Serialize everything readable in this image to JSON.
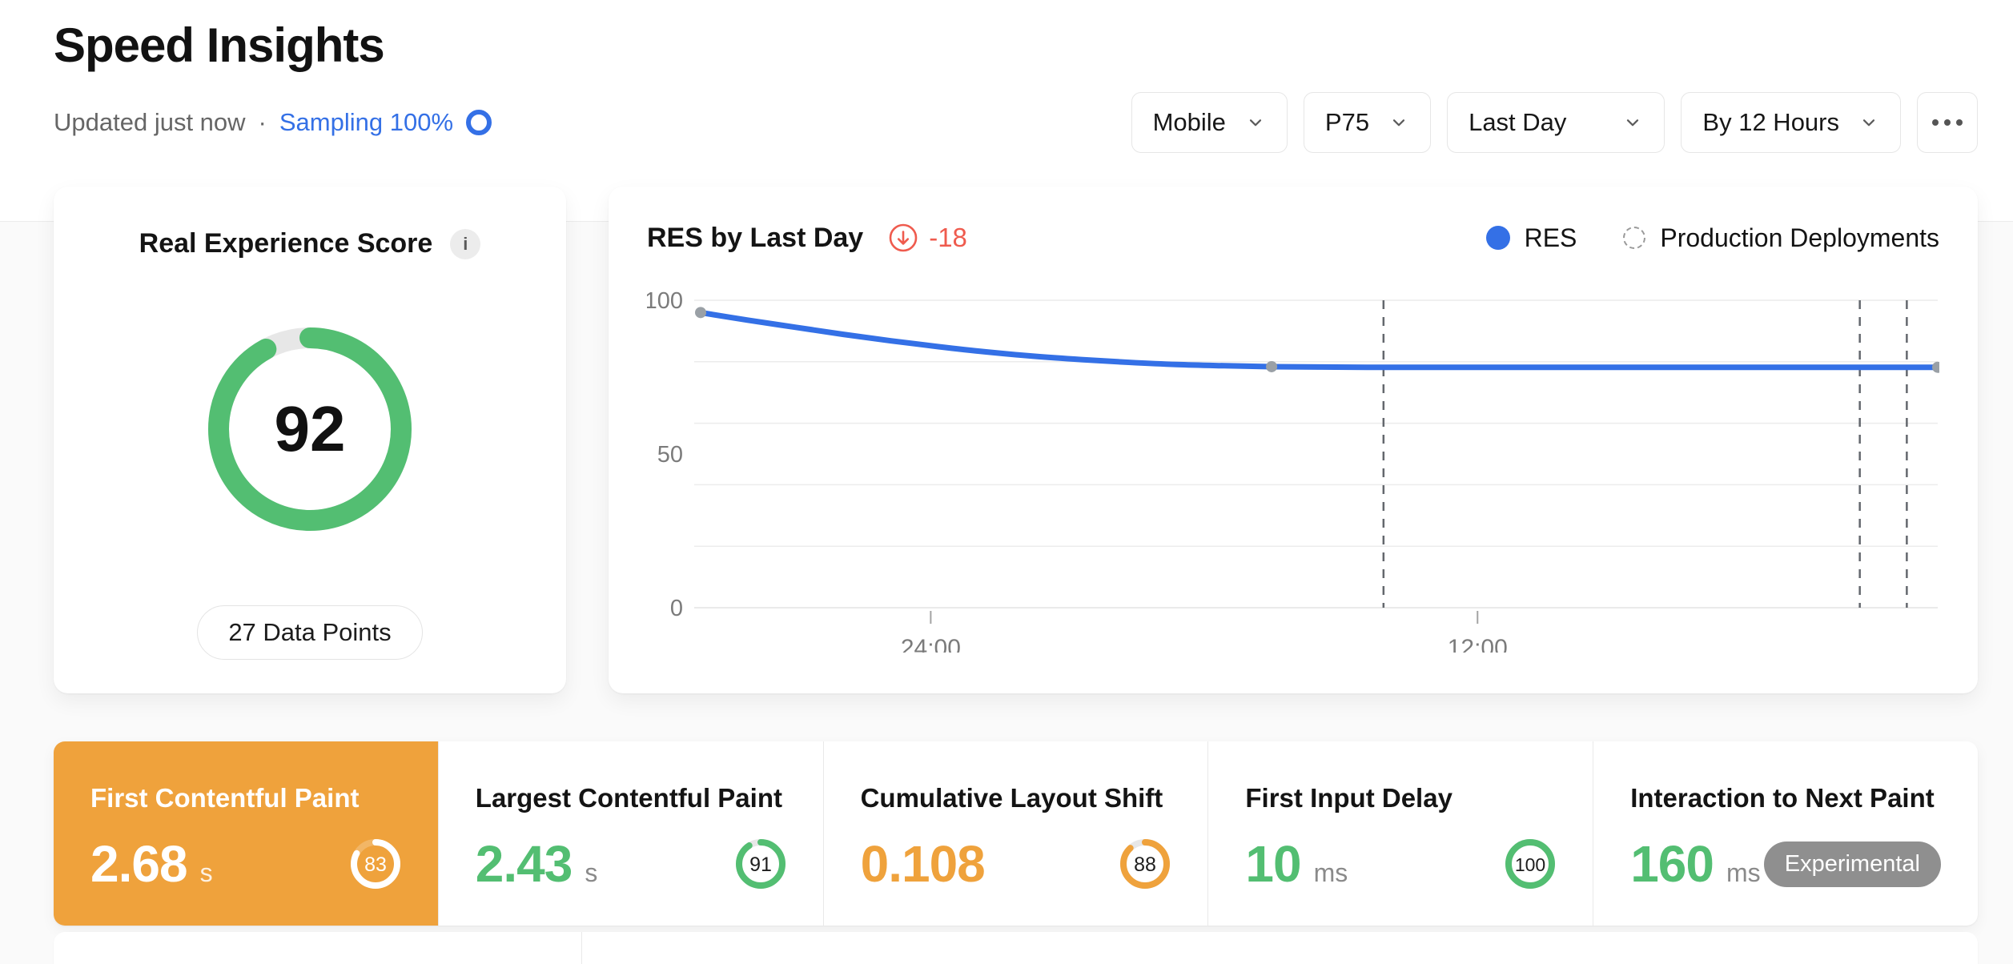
{
  "colors": {
    "blue": "#3470e6",
    "green": "#53be72",
    "amber": "#efa23c",
    "red": "#ef5b4e",
    "grid": "#ececec",
    "axis_text": "#7b7b7b",
    "marker_gray": "#9aa0a6",
    "deployment_line": "#63676d"
  },
  "header": {
    "title": "Speed Insights",
    "updated": "Updated just now",
    "separator": "·",
    "sampling": "Sampling 100%"
  },
  "filters": {
    "items": [
      {
        "label": "Mobile"
      },
      {
        "label": "P75"
      },
      {
        "label": "Last Day"
      },
      {
        "label": "By 12 Hours"
      }
    ]
  },
  "res_card": {
    "title": "Real Experience Score",
    "info_icon": "i",
    "score": 92,
    "data_points_label": "27 Data Points"
  },
  "chart_card": {
    "title": "RES by Last Day",
    "delta": "-18",
    "legend_res": "RES",
    "legend_deployments": "Production Deployments"
  },
  "chart_data": {
    "type": "line",
    "title": "RES by Last Day",
    "ylim": [
      0,
      100
    ],
    "y_tick_labels": [
      100,
      50,
      0
    ],
    "gridline_values": [
      100,
      80,
      60,
      40,
      20,
      0
    ],
    "grid": "horizontal",
    "legend_position": "top-right",
    "x_tick_labels": [
      {
        "label": "24:00",
        "pos": 0.186
      },
      {
        "label": "12:00",
        "pos": 0.628
      }
    ],
    "series": [
      {
        "name": "RES",
        "color_key": "blue",
        "values": [
          96,
          93.5,
          91.2,
          88.9,
          86.8,
          84.9,
          83.2,
          81.8,
          80.7,
          79.8,
          79.1,
          78.7,
          78.4,
          78.3,
          78.2,
          78.2,
          78.2,
          78.2,
          78.2,
          78.2,
          78.2,
          78.2,
          78.2,
          78.2,
          78.2,
          78.2,
          78.2
        ]
      }
    ],
    "marker_indices": [
      0,
      12,
      26
    ],
    "production_deployments_pos": [
      0.552,
      0.937,
      0.975
    ]
  },
  "metrics": [
    {
      "title": "First Contentful Paint",
      "value": "2.68",
      "unit": "s",
      "score": 83,
      "tone": "amber",
      "selected": true
    },
    {
      "title": "Largest Contentful Paint",
      "value": "2.43",
      "unit": "s",
      "score": 91,
      "tone": "green",
      "selected": false
    },
    {
      "title": "Cumulative Layout Shift",
      "value": "0.108",
      "unit": "",
      "score": 88,
      "tone": "amber",
      "selected": false
    },
    {
      "title": "First Input Delay",
      "value": "10",
      "unit": "ms",
      "score": 100,
      "tone": "green",
      "selected": false
    },
    {
      "title": "Interaction to Next Paint",
      "value": "160",
      "unit": "ms",
      "badge": "Experimental",
      "tone": "green",
      "selected": false
    }
  ]
}
